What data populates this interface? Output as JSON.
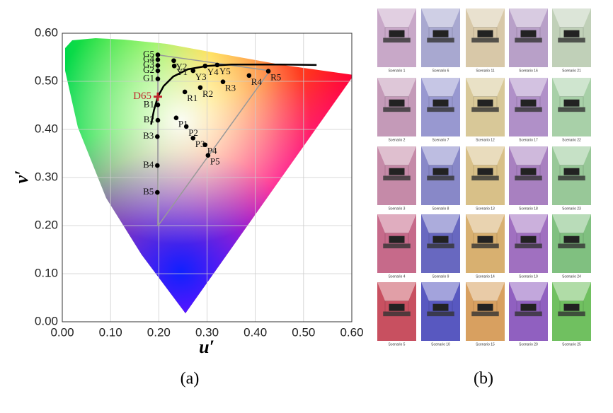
{
  "chart_data": {
    "type": "scatter",
    "xlabel": "u′",
    "ylabel": "v′",
    "xlim": [
      0,
      0.6
    ],
    "ylim": [
      0,
      0.6
    ],
    "xticks": [
      {
        "value": 0,
        "label": "0.00"
      },
      {
        "value": 0.1,
        "label": "0.10"
      },
      {
        "value": 0.2,
        "label": "0.20"
      },
      {
        "value": 0.3,
        "label": "0.30"
      },
      {
        "value": 0.4,
        "label": "0.40"
      },
      {
        "value": 0.5,
        "label": "0.50"
      },
      {
        "value": 0.6,
        "label": "0.60"
      }
    ],
    "yticks": [
      {
        "value": 0,
        "label": "0.00"
      },
      {
        "value": 0.1,
        "label": "0.10"
      },
      {
        "value": 0.2,
        "label": "0.20"
      },
      {
        "value": 0.3,
        "label": "0.30"
      },
      {
        "value": 0.4,
        "label": "0.40"
      },
      {
        "value": 0.5,
        "label": "0.50"
      },
      {
        "value": 0.6,
        "label": "0.60"
      }
    ],
    "grid": true,
    "series": [
      {
        "color": "#000000",
        "marker": "circle",
        "labels": [
          "G5",
          "G4",
          "G3",
          "G2",
          "G1",
          "Y2",
          "Y1",
          "Y3",
          "Y4",
          "Y5",
          "R1",
          "R2",
          "R3",
          "R4",
          "R5",
          "P1",
          "P2",
          "P3",
          "P4",
          "P5",
          "B1",
          "B2",
          "B3",
          "B4",
          "B5"
        ],
        "x": [
          0.198,
          0.198,
          0.198,
          0.198,
          0.198,
          0.231,
          0.232,
          0.271,
          0.296,
          0.321,
          0.254,
          0.286,
          0.333,
          0.387,
          0.427,
          0.236,
          0.257,
          0.271,
          0.296,
          0.302,
          0.198,
          0.198,
          0.197,
          0.197,
          0.197
        ],
        "values": [
          0.555,
          0.545,
          0.533,
          0.522,
          0.505,
          0.543,
          0.532,
          0.522,
          0.532,
          0.534,
          0.478,
          0.487,
          0.499,
          0.512,
          0.521,
          0.424,
          0.406,
          0.382,
          0.368,
          0.346,
          0.451,
          0.419,
          0.385,
          0.325,
          0.269
        ]
      },
      {
        "color": "#c0282d",
        "marker": "cross",
        "labels": [
          "D65"
        ],
        "x": [
          0.198
        ],
        "values": [
          0.468
        ]
      }
    ],
    "locus": {
      "color": "#000000",
      "x": [
        0.184,
        0.19,
        0.198,
        0.21,
        0.23,
        0.26,
        0.3,
        0.35,
        0.4,
        0.45,
        0.527
      ],
      "values": [
        0.41,
        0.44,
        0.468,
        0.49,
        0.51,
        0.525,
        0.532,
        0.535,
        0.535,
        0.535,
        0.534
      ]
    },
    "gamut": {
      "color": "#999999",
      "x": [
        0.198,
        0.198,
        0.43,
        0.198
      ],
      "values": [
        0.199,
        0.555,
        0.522,
        0.199
      ]
    }
  },
  "panel_labels": [
    "(a)",
    "(b)"
  ],
  "panel_b": {
    "scenarios": [
      {
        "label": "Scenario 1",
        "color": "#c8a8c8"
      },
      {
        "label": "Scenario 2",
        "color": "#c49ab8"
      },
      {
        "label": "Scenario 3",
        "color": "#c58aa8"
      },
      {
        "label": "Scenario 4",
        "color": "#c66a8a"
      },
      {
        "label": "Scenario 5",
        "color": "#c85060"
      },
      {
        "label": "Scenario 6",
        "color": "#a8a8d0"
      },
      {
        "label": "Scenario 7",
        "color": "#9898d0"
      },
      {
        "label": "Scenario 8",
        "color": "#8888c8"
      },
      {
        "label": "Scenario 9",
        "color": "#6868c0"
      },
      {
        "label": "Scenario 10",
        "color": "#5858c0"
      },
      {
        "label": "Scenario 11",
        "color": "#d8c8a8"
      },
      {
        "label": "Scenario 12",
        "color": "#d8c898"
      },
      {
        "label": "Scenario 13",
        "color": "#d8c088"
      },
      {
        "label": "Scenario 14",
        "color": "#d8b070"
      },
      {
        "label": "Scenario 15",
        "color": "#d8a060"
      },
      {
        "label": "Scenario 16",
        "color": "#b8a0c8"
      },
      {
        "label": "Scenario 17",
        "color": "#b090c8"
      },
      {
        "label": "Scenario 18",
        "color": "#a880c0"
      },
      {
        "label": "Scenario 19",
        "color": "#a070c0"
      },
      {
        "label": "Scenario 20",
        "color": "#9060c0"
      },
      {
        "label": "Scenario 21",
        "color": "#c0d0b8"
      },
      {
        "label": "Scenario 22",
        "color": "#a8d0a8"
      },
      {
        "label": "Scenario 23",
        "color": "#98c898"
      },
      {
        "label": "Scenario 24",
        "color": "#80c080"
      },
      {
        "label": "Scenario 25",
        "color": "#70c060"
      }
    ]
  }
}
